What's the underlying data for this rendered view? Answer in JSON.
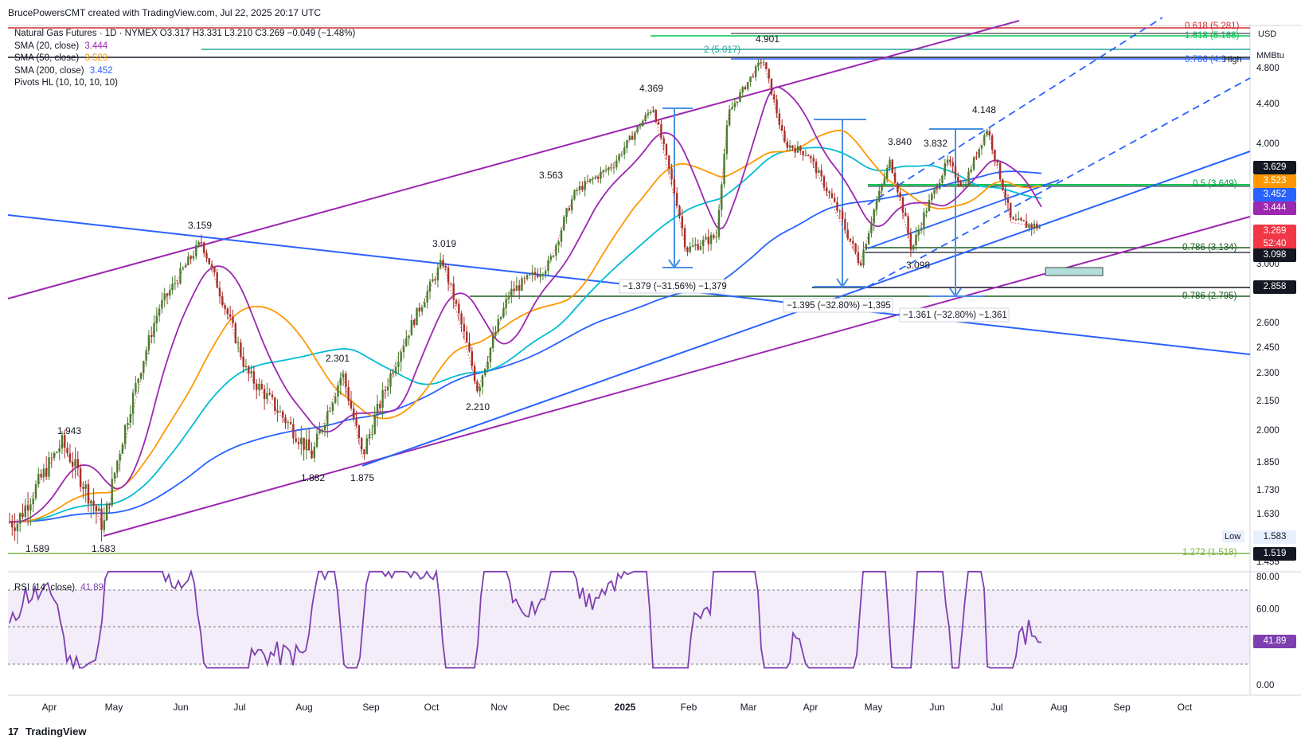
{
  "header": {
    "credit": "BrucePowersCMT created with TradingView.com, Jul 22, 2025 20:17 UTC"
  },
  "legend": {
    "symbol_line": "Natural Gas Futures · 1D · NYMEX  O3.317  H3.331  L3.210  C3.269  −0.049 (−1.48%)",
    "sma20_label": "SMA (20, close)",
    "sma20_value": "3.444",
    "sma50_label": "SMA (50, close)",
    "sma50_value": "3.523",
    "sma200_label": "SMA (200, close)",
    "sma200_value": "3.452",
    "pivots_label": "Pivots HL (10, 10, 10, 10)"
  },
  "rsi_legend": {
    "label": "RSI (14, close)",
    "value": "41.89"
  },
  "footer": {
    "logo": "17",
    "brand": "TradingView"
  },
  "colors": {
    "sma20": "#9c27b0",
    "sma50": "#ff9800",
    "sma200": "#2962ff",
    "teal": "#00bcd4",
    "channel": "#9c27b0",
    "trend": "#2962ff",
    "fib_green": "#1b5e20",
    "fib_red": "#d32f2f",
    "fib_teal": "#26a69a",
    "bull": "#26a69a",
    "bear": "#a8302a",
    "candle": "#4a7c2e",
    "rsi": "#7e3fb0"
  },
  "chart_data": [
    {
      "type": "candlestick",
      "title": "Natural Gas Futures · 1D · NYMEX",
      "currency_label": "USD",
      "unit_label": "MMBtu",
      "y_ticks": [
        "4.800",
        "4.400",
        "4.000",
        "3.400",
        "3.000",
        "2.600",
        "2.450",
        "2.300",
        "2.150",
        "2.000",
        "1.850",
        "1.730",
        "1.630",
        "1.455"
      ],
      "x_tick_labels": [
        "Apr",
        "May",
        "Jun",
        "Jul",
        "Aug",
        "Sep",
        "Oct",
        "Nov",
        "Dec",
        "2025",
        "Feb",
        "Mar",
        "Apr",
        "May",
        "Jun",
        "Jul",
        "Aug",
        "Sep",
        "Oct"
      ],
      "ohlc_last": {
        "open": 3.317,
        "high": 3.331,
        "low": 3.21,
        "close": 3.269,
        "change": -0.049,
        "change_pct": -1.48
      },
      "pivot_labels": [
        "1.943",
        "1.589",
        "1.583",
        "3.159",
        "2.301",
        "1.882",
        "1.875",
        "3.019",
        "2.210",
        "3.563",
        "4.369",
        "4.901",
        "3.840",
        "3.832",
        "4.148",
        "3.098"
      ],
      "price_tags": [
        {
          "value": "3.629",
          "color": "#131722"
        },
        {
          "value": "3.523",
          "color": "#ff9800"
        },
        {
          "value": "3.452",
          "color": "#2962ff"
        },
        {
          "value": "3.444",
          "color": "#9c27b0"
        },
        {
          "value": "3.269",
          "color": "#f23645"
        },
        {
          "value": "52:40",
          "color": "#f23645"
        },
        {
          "value": "3.098",
          "color": "#131722"
        },
        {
          "value": "2.858",
          "color": "#131722"
        },
        {
          "value": "1.519",
          "color": "#131722"
        },
        {
          "value": "1.583",
          "color": "#e8f0fe"
        }
      ],
      "low_label": "Low",
      "high_label": "High",
      "fib_labels": [
        "0.618 (5.281)",
        "1.618 (5.168)",
        "2 (5.017)",
        "0.786 (4.9",
        "0.5 (3.649)",
        "0.786 (3.134)",
        "0.786 (2.795)",
        "1.272 (1.518)"
      ],
      "measurements": [
        "−1.379 (−31.56%) −1,379",
        "−1.395 (−32.80%) −1,395",
        "−1.361 (−32.80%) −1,361"
      ],
      "series": [
        {
          "name": "SMA (20, close)",
          "last": 3.444
        },
        {
          "name": "SMA (50, close)",
          "last": 3.523
        },
        {
          "name": "SMA (200, close)",
          "last": 3.452
        }
      ],
      "price_path": [
        [
          "Apr",
          1.6
        ],
        [
          "May",
          1.58
        ],
        [
          "May",
          1.94
        ],
        [
          "Jun",
          2.7
        ],
        [
          "Jun",
          3.16
        ],
        [
          "Jul",
          2.7
        ],
        [
          "Jul",
          2.3
        ],
        [
          "Aug",
          1.88
        ],
        [
          "Aug",
          2.3
        ],
        [
          "Sep",
          1.875
        ],
        [
          "Sep",
          2.4
        ],
        [
          "Oct",
          3.019
        ],
        [
          "Oct",
          2.21
        ],
        [
          "Nov",
          2.8
        ],
        [
          "Nov",
          3.0
        ],
        [
          "Dec",
          3.56
        ],
        [
          "Dec",
          3.8
        ],
        [
          "2025",
          4.369
        ],
        [
          "2025",
          3.1
        ],
        [
          "Feb",
          3.2
        ],
        [
          "Feb",
          4.3
        ],
        [
          "Mar",
          4.901
        ],
        [
          "Mar",
          4.0
        ],
        [
          "Apr",
          3.9
        ],
        [
          "Apr",
          3.0
        ],
        [
          "May",
          3.84
        ],
        [
          "May",
          3.098
        ],
        [
          "Jun",
          3.832
        ],
        [
          "Jun",
          3.6
        ],
        [
          "Jul",
          4.148
        ],
        [
          "Jul",
          3.3
        ],
        [
          "Jul",
          3.269
        ]
      ]
    },
    {
      "type": "line",
      "title": "RSI (14, close)",
      "y_ticks": [
        "80.00",
        "60.00",
        "41.89",
        "0.00"
      ],
      "last": 41.89,
      "upper_band": 70,
      "lower_band": 30
    }
  ]
}
